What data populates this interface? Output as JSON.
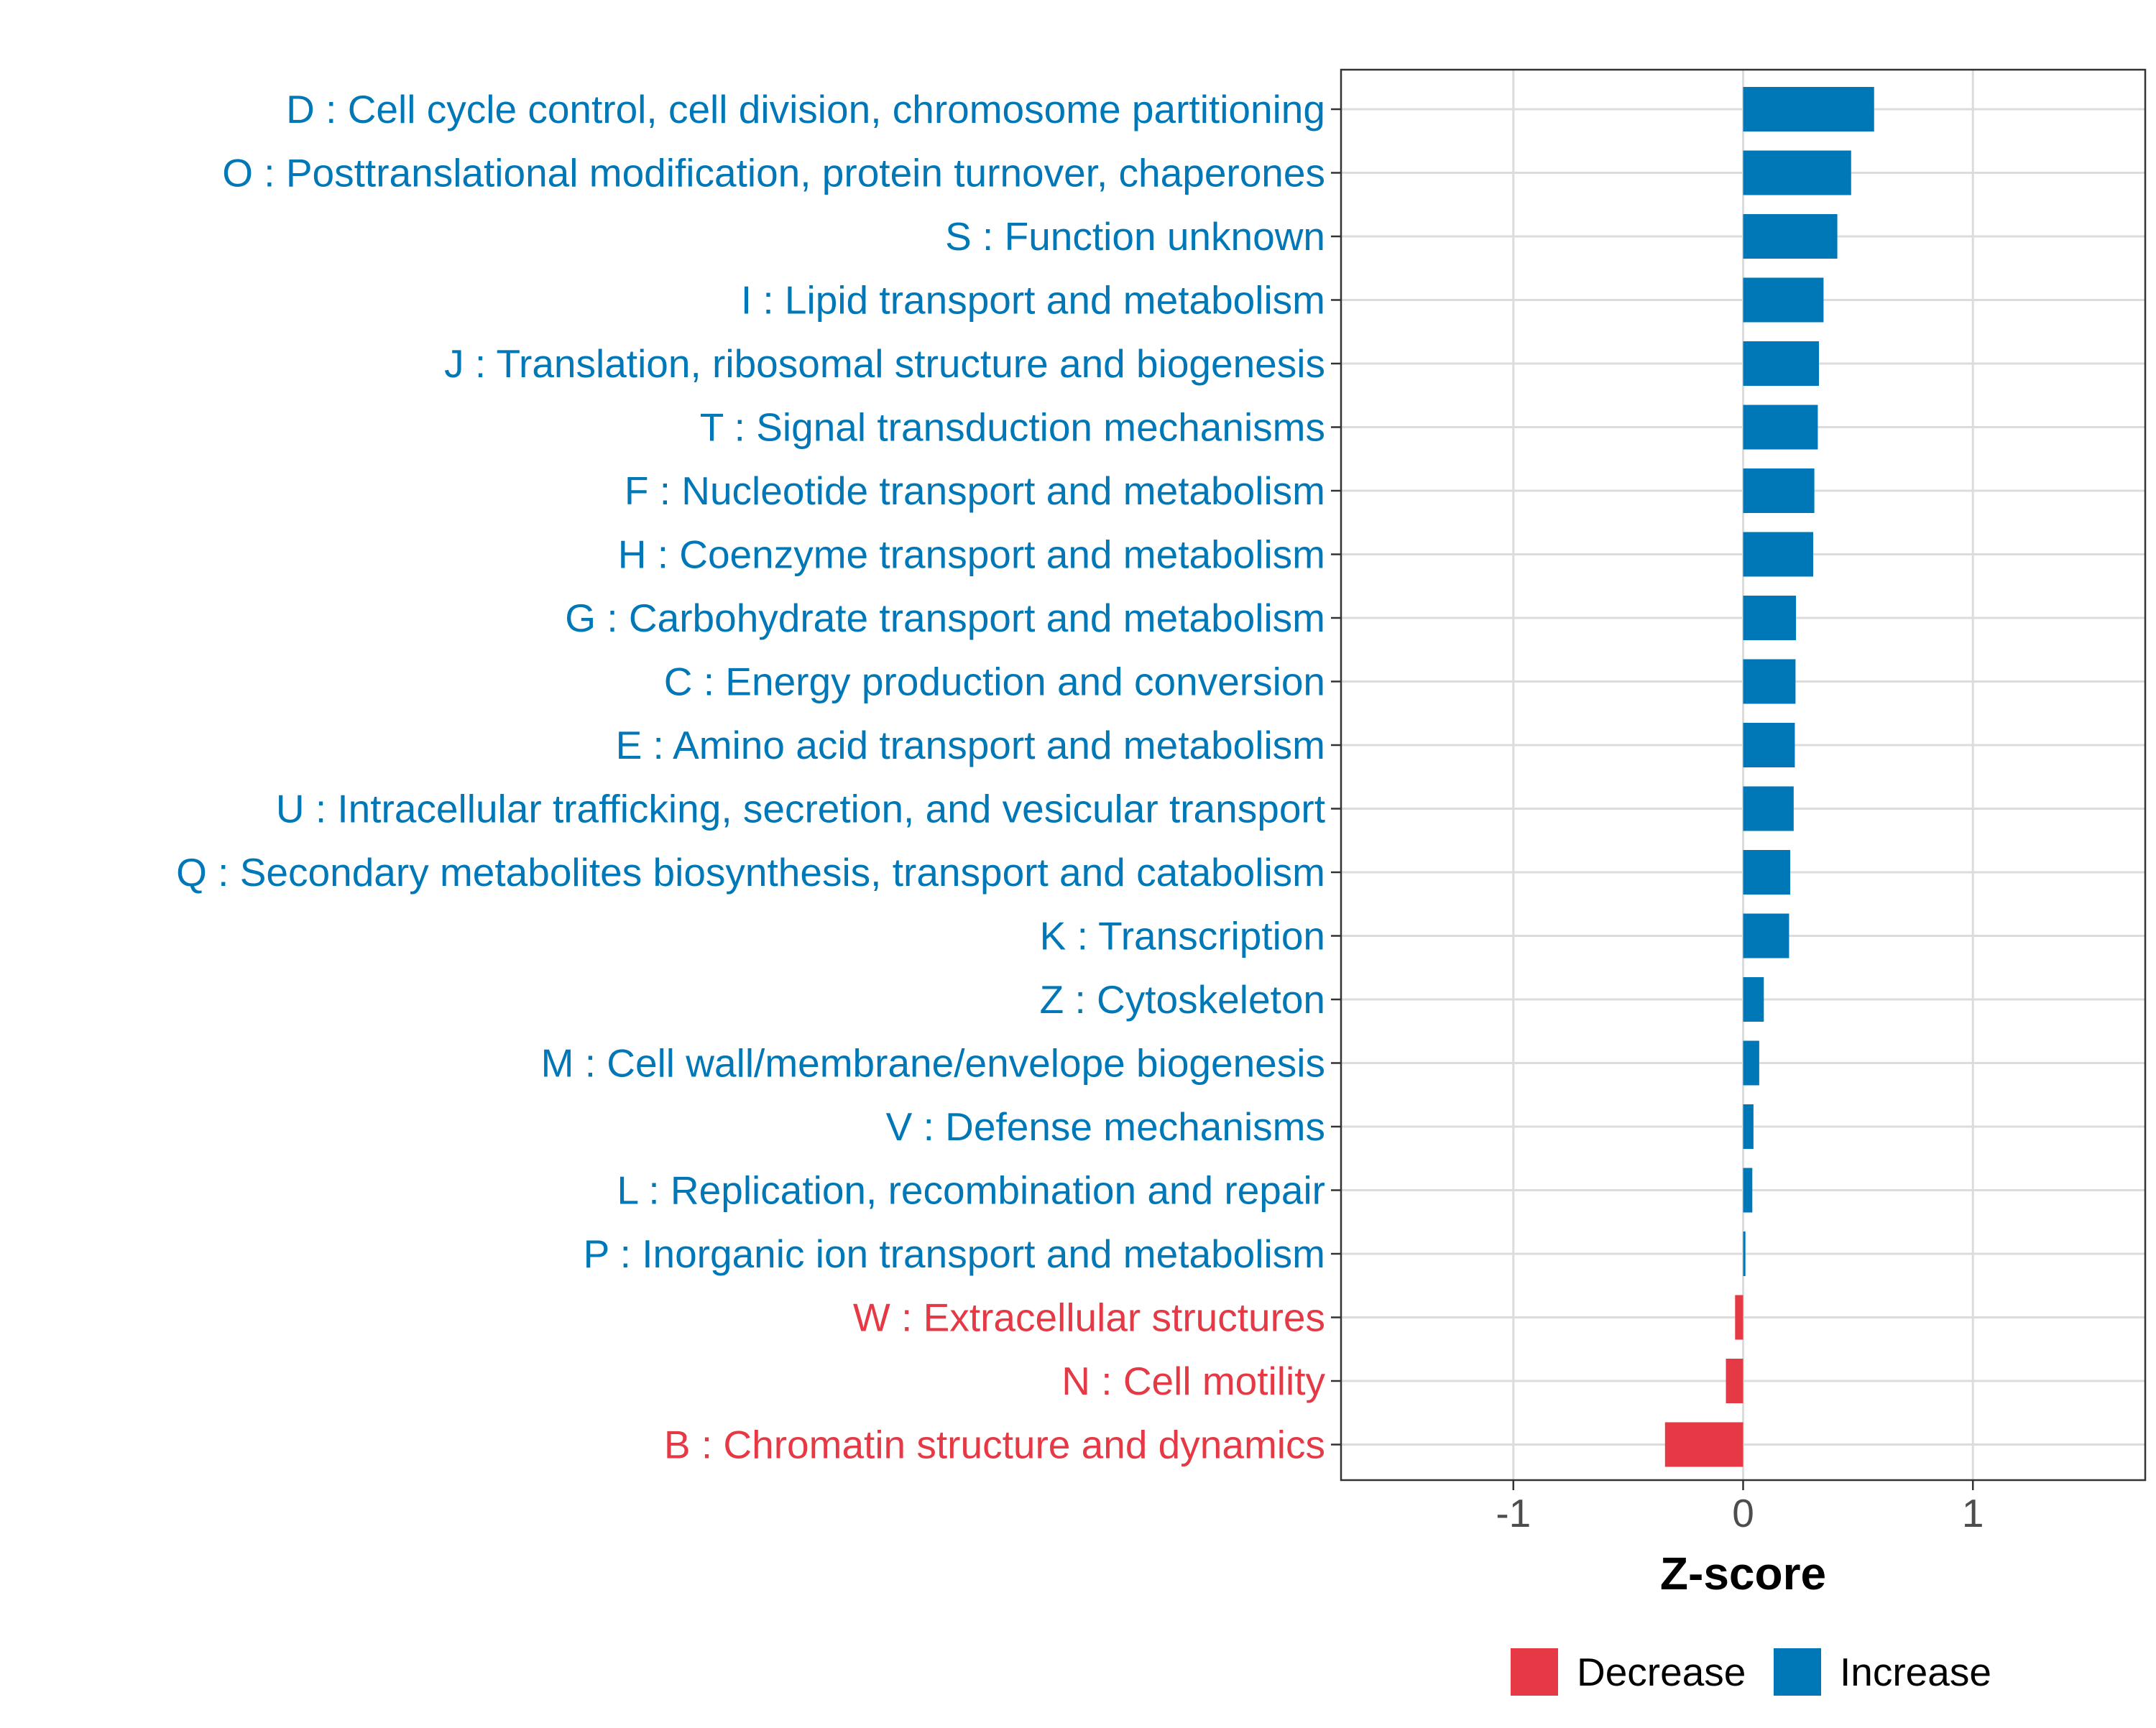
{
  "chart_data": {
    "type": "bar",
    "orientation": "horizontal",
    "title": "",
    "xlabel": "Z-score",
    "ylabel": "",
    "xlim": [
      -1.75,
      1.75
    ],
    "xticks": [
      {
        "value": -1,
        "label": "-1"
      },
      {
        "value": 0,
        "label": "0"
      },
      {
        "value": 1,
        "label": "1"
      }
    ],
    "grid": true,
    "legend": {
      "placement": "bottom",
      "entries": [
        {
          "key": "decrease",
          "label": "Decrease",
          "color": "#E63946"
        },
        {
          "key": "increase",
          "label": "Increase",
          "color": "#0077B6"
        }
      ]
    },
    "bars": [
      {
        "label": "D : Cell cycle control, cell division, chromosome partitioning",
        "value": 0.57,
        "group": "increase"
      },
      {
        "label": "O : Posttranslational modification, protein turnover, chaperones",
        "value": 0.47,
        "group": "increase"
      },
      {
        "label": "S : Function unknown",
        "value": 0.41,
        "group": "increase"
      },
      {
        "label": "I : Lipid transport and metabolism",
        "value": 0.35,
        "group": "increase"
      },
      {
        "label": "J : Translation, ribosomal structure and biogenesis",
        "value": 0.33,
        "group": "increase"
      },
      {
        "label": "T : Signal transduction mechanisms",
        "value": 0.325,
        "group": "increase"
      },
      {
        "label": "F : Nucleotide transport and metabolism",
        "value": 0.31,
        "group": "increase"
      },
      {
        "label": "H : Coenzyme transport and metabolism",
        "value": 0.305,
        "group": "increase"
      },
      {
        "label": "G : Carbohydrate transport and metabolism",
        "value": 0.23,
        "group": "increase"
      },
      {
        "label": "C : Energy production and conversion",
        "value": 0.228,
        "group": "increase"
      },
      {
        "label": "E : Amino acid transport and metabolism",
        "value": 0.225,
        "group": "increase"
      },
      {
        "label": "U : Intracellular trafficking, secretion, and vesicular transport",
        "value": 0.22,
        "group": "increase"
      },
      {
        "label": "Q : Secondary metabolites biosynthesis, transport and catabolism",
        "value": 0.205,
        "group": "increase"
      },
      {
        "label": "K : Transcription",
        "value": 0.2,
        "group": "increase"
      },
      {
        "label": "Z : Cytoskeleton",
        "value": 0.09,
        "group": "increase"
      },
      {
        "label": "M : Cell wall/membrane/envelope biogenesis",
        "value": 0.07,
        "group": "increase"
      },
      {
        "label": "V : Defense mechanisms",
        "value": 0.045,
        "group": "increase"
      },
      {
        "label": "L : Replication, recombination and repair",
        "value": 0.04,
        "group": "increase"
      },
      {
        "label": "P : Inorganic ion transport and metabolism",
        "value": 0.01,
        "group": "increase"
      },
      {
        "label": "W : Extracellular structures",
        "value": -0.035,
        "group": "decrease"
      },
      {
        "label": "N : Cell motility",
        "value": -0.075,
        "group": "decrease"
      },
      {
        "label": "B : Chromatin structure and dynamics",
        "value": -0.34,
        "group": "decrease"
      }
    ]
  }
}
